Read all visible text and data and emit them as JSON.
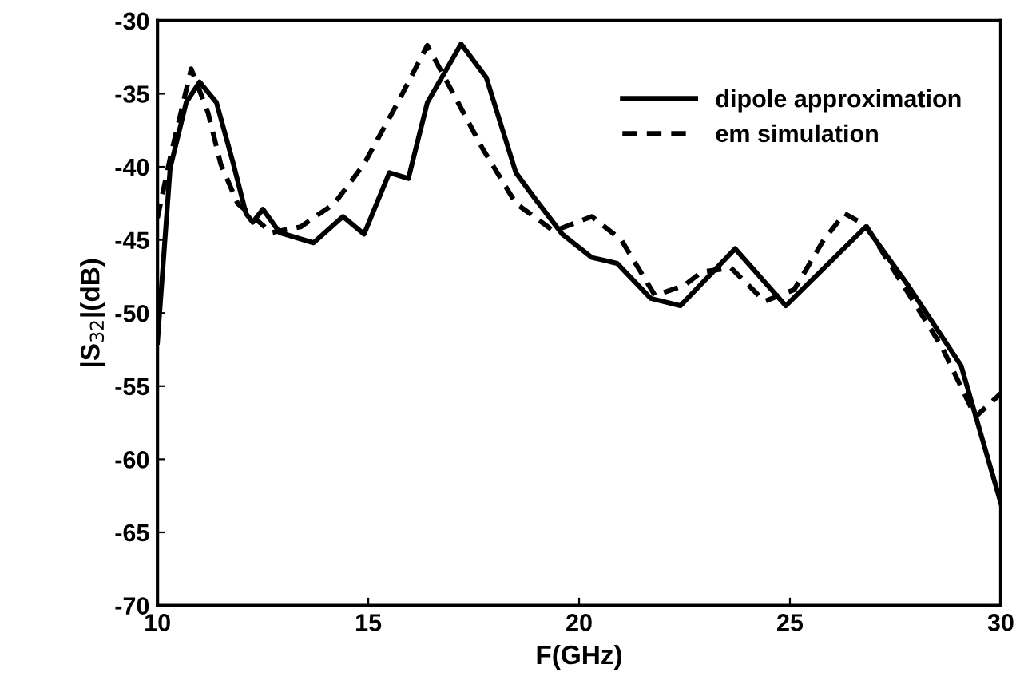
{
  "chart_data": {
    "type": "line",
    "xlabel": "F(GHz)",
    "ylabel": "|S$_{32}$|(dB)",
    "xlim": [
      10,
      30
    ],
    "ylim": [
      -70,
      -30
    ],
    "xticks": [
      10,
      15,
      20,
      25,
      30
    ],
    "yticks": [
      -70,
      -65,
      -60,
      -55,
      -50,
      -45,
      -40,
      -35,
      -30
    ],
    "grid": false,
    "legend": "top right",
    "marker": "none",
    "series": [
      {
        "name": "dipole approximation",
        "color": "#000000",
        "line_style": "solid",
        "x": [
          10,
          10.3,
          10.68,
          11.0,
          11.4,
          11.8,
          12.1,
          12.26,
          12.5,
          12.9,
          13.7,
          14.4,
          14.9,
          15.5,
          15.95,
          16.4,
          17.2,
          17.8,
          18.5,
          18.96,
          19.6,
          20.3,
          20.9,
          21.7,
          22.4,
          23.7,
          24.9,
          26.8,
          27.8,
          29.06,
          30
        ],
        "values": [
          -52,
          -40.1,
          -35.6,
          -34.2,
          -35.6,
          -39.8,
          -43.2,
          -43.8,
          -42.9,
          -44.5,
          -45.2,
          -43.4,
          -44.6,
          -40.4,
          -40.8,
          -35.6,
          -31.6,
          -33.9,
          -40.4,
          -42.2,
          -44.6,
          -46.2,
          -46.6,
          -49.0,
          -49.5,
          -45.6,
          -49.5,
          -44.1,
          -48.1,
          -53.6,
          -63
        ]
      },
      {
        "name": "em simulation",
        "color": "#000000",
        "line_style": "dashed",
        "x": [
          10,
          10.3,
          10.8,
          11.2,
          11.5,
          11.9,
          12.7,
          13.4,
          14.2,
          14.9,
          15.7,
          16.4,
          17.0,
          17.7,
          18.5,
          19.4,
          20.3,
          21.0,
          21.8,
          22.5,
          22.9,
          23.6,
          24.4,
          25.1,
          25.8,
          26.3,
          26.8,
          27.6,
          28.6,
          29.4,
          30
        ],
        "values": [
          -43.5,
          -39.4,
          -33.3,
          -36.3,
          -39.8,
          -42.5,
          -44.5,
          -44.1,
          -42.5,
          -39.8,
          -35.6,
          -31.7,
          -34.9,
          -38.7,
          -42.5,
          -44.4,
          -43.4,
          -45.0,
          -48.8,
          -48.1,
          -47.2,
          -46.9,
          -49.2,
          -48.4,
          -45.0,
          -43.2,
          -44.0,
          -47.7,
          -52.3,
          -57.1,
          -55.5
        ]
      }
    ]
  }
}
